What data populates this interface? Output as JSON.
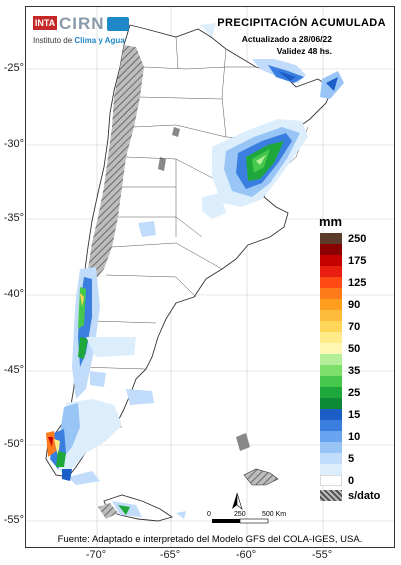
{
  "header": {
    "title": "PRECIPITACIÓN ACUMULADA",
    "updated": "Actualizado a 28/06/22",
    "validity": "Validez 48 hs."
  },
  "logo": {
    "inta": "INTA",
    "cirn": "CIRN",
    "subtitle_prefix": "Instituto de ",
    "subtitle_highlight": "Clima y Agua"
  },
  "legend": {
    "unit": "mm",
    "items": [
      {
        "label": "250",
        "color": "#5b3a29"
      },
      {
        "label": "",
        "color": "#8b0000"
      },
      {
        "label": "175",
        "color": "#c40000"
      },
      {
        "label": "",
        "color": "#e81e10"
      },
      {
        "label": "125",
        "color": "#ff4a14"
      },
      {
        "label": "",
        "color": "#ff7a18"
      },
      {
        "label": "90",
        "color": "#ff9e1e"
      },
      {
        "label": "",
        "color": "#ffbc3c"
      },
      {
        "label": "70",
        "color": "#ffd65a"
      },
      {
        "label": "",
        "color": "#ffeb87"
      },
      {
        "label": "50",
        "color": "#fff7b4"
      },
      {
        "label": "",
        "color": "#b4f09a"
      },
      {
        "label": "35",
        "color": "#7ee06a"
      },
      {
        "label": "",
        "color": "#46c84c"
      },
      {
        "label": "25",
        "color": "#1ea83c"
      },
      {
        "label": "",
        "color": "#0c8a36"
      },
      {
        "label": "15",
        "color": "#1c5ec8"
      },
      {
        "label": "",
        "color": "#3a7fe0"
      },
      {
        "label": "10",
        "color": "#6aa4f0"
      },
      {
        "label": "",
        "color": "#98c4f6"
      },
      {
        "label": "5",
        "color": "#c0dcfa"
      },
      {
        "label": "",
        "color": "#dcedfc"
      },
      {
        "label": "0",
        "color": "#ffffff"
      },
      {
        "label": "s/dato",
        "color": "#888888"
      }
    ]
  },
  "axes": {
    "lat_ticks": [
      "-25°",
      "-30°",
      "-35°",
      "-40°",
      "-45°",
      "-50°",
      "-55°"
    ],
    "lon_ticks": [
      "-70°",
      "-65°",
      "-60°",
      "-55°"
    ]
  },
  "scale_bar": {
    "labels": [
      "0",
      "250",
      "500 Km"
    ],
    "north": "N"
  },
  "source": "Fuente: Adaptado e interpretado del Modelo GFS del COLA-IGES, USA."
}
